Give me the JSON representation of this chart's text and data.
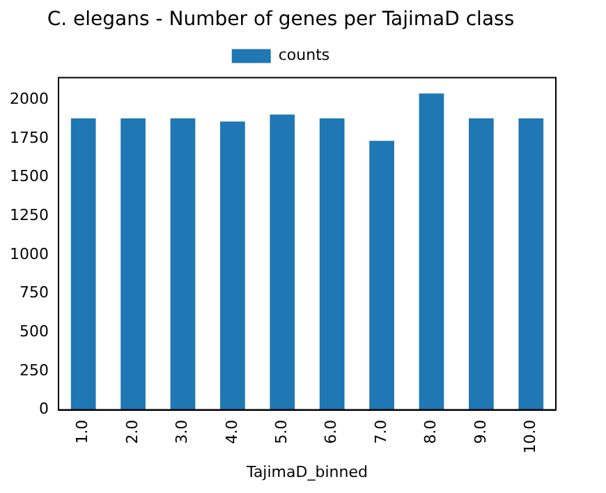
{
  "chart_data": {
    "type": "bar",
    "title": "C. elegans - Number of genes per TajimaD class",
    "xlabel": "TajimaD_binned",
    "categories": [
      "1.0",
      "2.0",
      "3.0",
      "4.0",
      "5.0",
      "6.0",
      "7.0",
      "8.0",
      "9.0",
      "10.0"
    ],
    "series": [
      {
        "name": "counts",
        "color": "#1f77b4",
        "values": [
          1880,
          1880,
          1880,
          1860,
          1905,
          1880,
          1735,
          2040,
          1880,
          1880
        ]
      }
    ],
    "ylim": [
      0,
      2142
    ],
    "yticks": [
      0,
      250,
      500,
      750,
      1000,
      1250,
      1500,
      1750,
      2000
    ],
    "grid": false,
    "legend": "top"
  }
}
